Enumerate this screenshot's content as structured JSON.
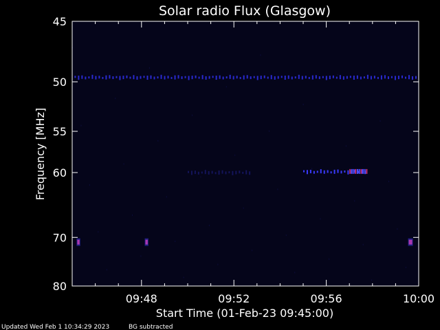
{
  "chart_data": {
    "type": "heatmap",
    "title": "Solar radio Flux (Glasgow)",
    "xlabel": "Start Time (01-Feb-23 09:45:00)",
    "ylabel": "Frequency [MHz]",
    "x_range_minutes": [
      0,
      15
    ],
    "x_ticks": [
      {
        "minute": 3,
        "label": "09:48"
      },
      {
        "minute": 7,
        "label": "09:52"
      },
      {
        "minute": 11,
        "label": "09:56"
      },
      {
        "minute": 15,
        "label": "10:00"
      }
    ],
    "ylim": [
      45,
      80
    ],
    "y_ticks": [
      45,
      50,
      55,
      60,
      70,
      80
    ],
    "y_axis_reversed": true,
    "background_color": "#05051a",
    "signals": [
      {
        "name": "50 MHz band",
        "freq": 49.6,
        "start": 0.1,
        "end": 15.0,
        "intensity": "low"
      },
      {
        "name": "60 MHz burst",
        "freq": 59.9,
        "start": 10.0,
        "end": 12.8,
        "intensity": "medium"
      },
      {
        "name": "60 MHz weak",
        "freq": 60.0,
        "start": 5.0,
        "end": 7.8,
        "intensity": "very-low"
      },
      {
        "name": "71 MHz spot A",
        "freq": 70.8,
        "start": 0.25,
        "end": 0.35,
        "intensity": "high"
      },
      {
        "name": "71 MHz spot B",
        "freq": 70.8,
        "start": 3.2,
        "end": 3.3,
        "intensity": "high"
      },
      {
        "name": "71 MHz spot C",
        "freq": 70.8,
        "start": 14.6,
        "end": 14.75,
        "intensity": "high"
      }
    ],
    "colors": {
      "axis": "#ffffff",
      "low": "#2a2ad0",
      "medium": "#3a3aff",
      "very-low": "#14145a",
      "high": "#ff3070"
    }
  },
  "footer": {
    "updated": "Updated Wed Feb  1 10:34:29 2023",
    "note": "BG subtracted"
  }
}
